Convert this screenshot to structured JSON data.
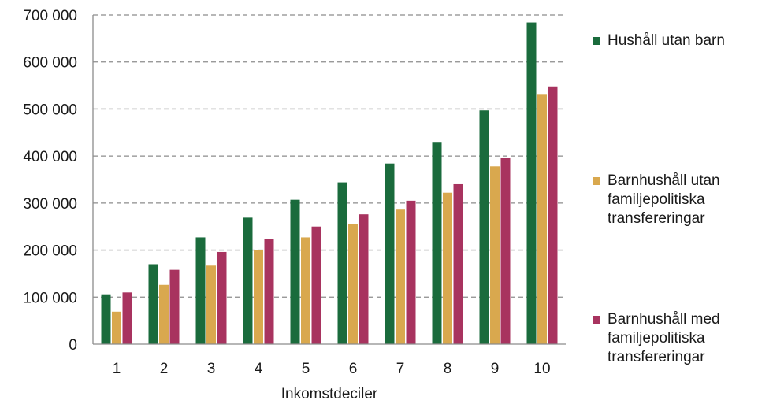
{
  "chart_data": {
    "type": "bar",
    "title": "",
    "xlabel": "Inkomstdeciler",
    "ylabel": "",
    "categories": [
      "1",
      "2",
      "3",
      "4",
      "5",
      "6",
      "7",
      "8",
      "9",
      "10"
    ],
    "ylim": [
      0,
      700000
    ],
    "yticks": [
      0,
      100000,
      200000,
      300000,
      400000,
      500000,
      600000,
      700000
    ],
    "ytick_labels": [
      "0",
      "100 000",
      "200 000",
      "300 000",
      "400 000",
      "500 000",
      "600 000",
      "700 000"
    ],
    "grid": true,
    "legend_position": "right",
    "series": [
      {
        "name": "Hushåll utan barn",
        "color": "#1a6b3c",
        "values": [
          106000,
          170000,
          227000,
          269000,
          307000,
          344000,
          384000,
          430000,
          497000,
          684000
        ]
      },
      {
        "name": "Barnhushåll utan\nfamiljepolitiska\ntransfereringar",
        "color": "#d9a84e",
        "values": [
          69000,
          126000,
          167000,
          200000,
          227000,
          255000,
          286000,
          322000,
          378000,
          532000
        ]
      },
      {
        "name": "Barnhushåll med\nfamiljepolitiska\ntransfereringar",
        "color": "#a8335f",
        "values": [
          110000,
          158000,
          196000,
          224000,
          250000,
          276000,
          305000,
          340000,
          396000,
          548000
        ]
      }
    ]
  }
}
